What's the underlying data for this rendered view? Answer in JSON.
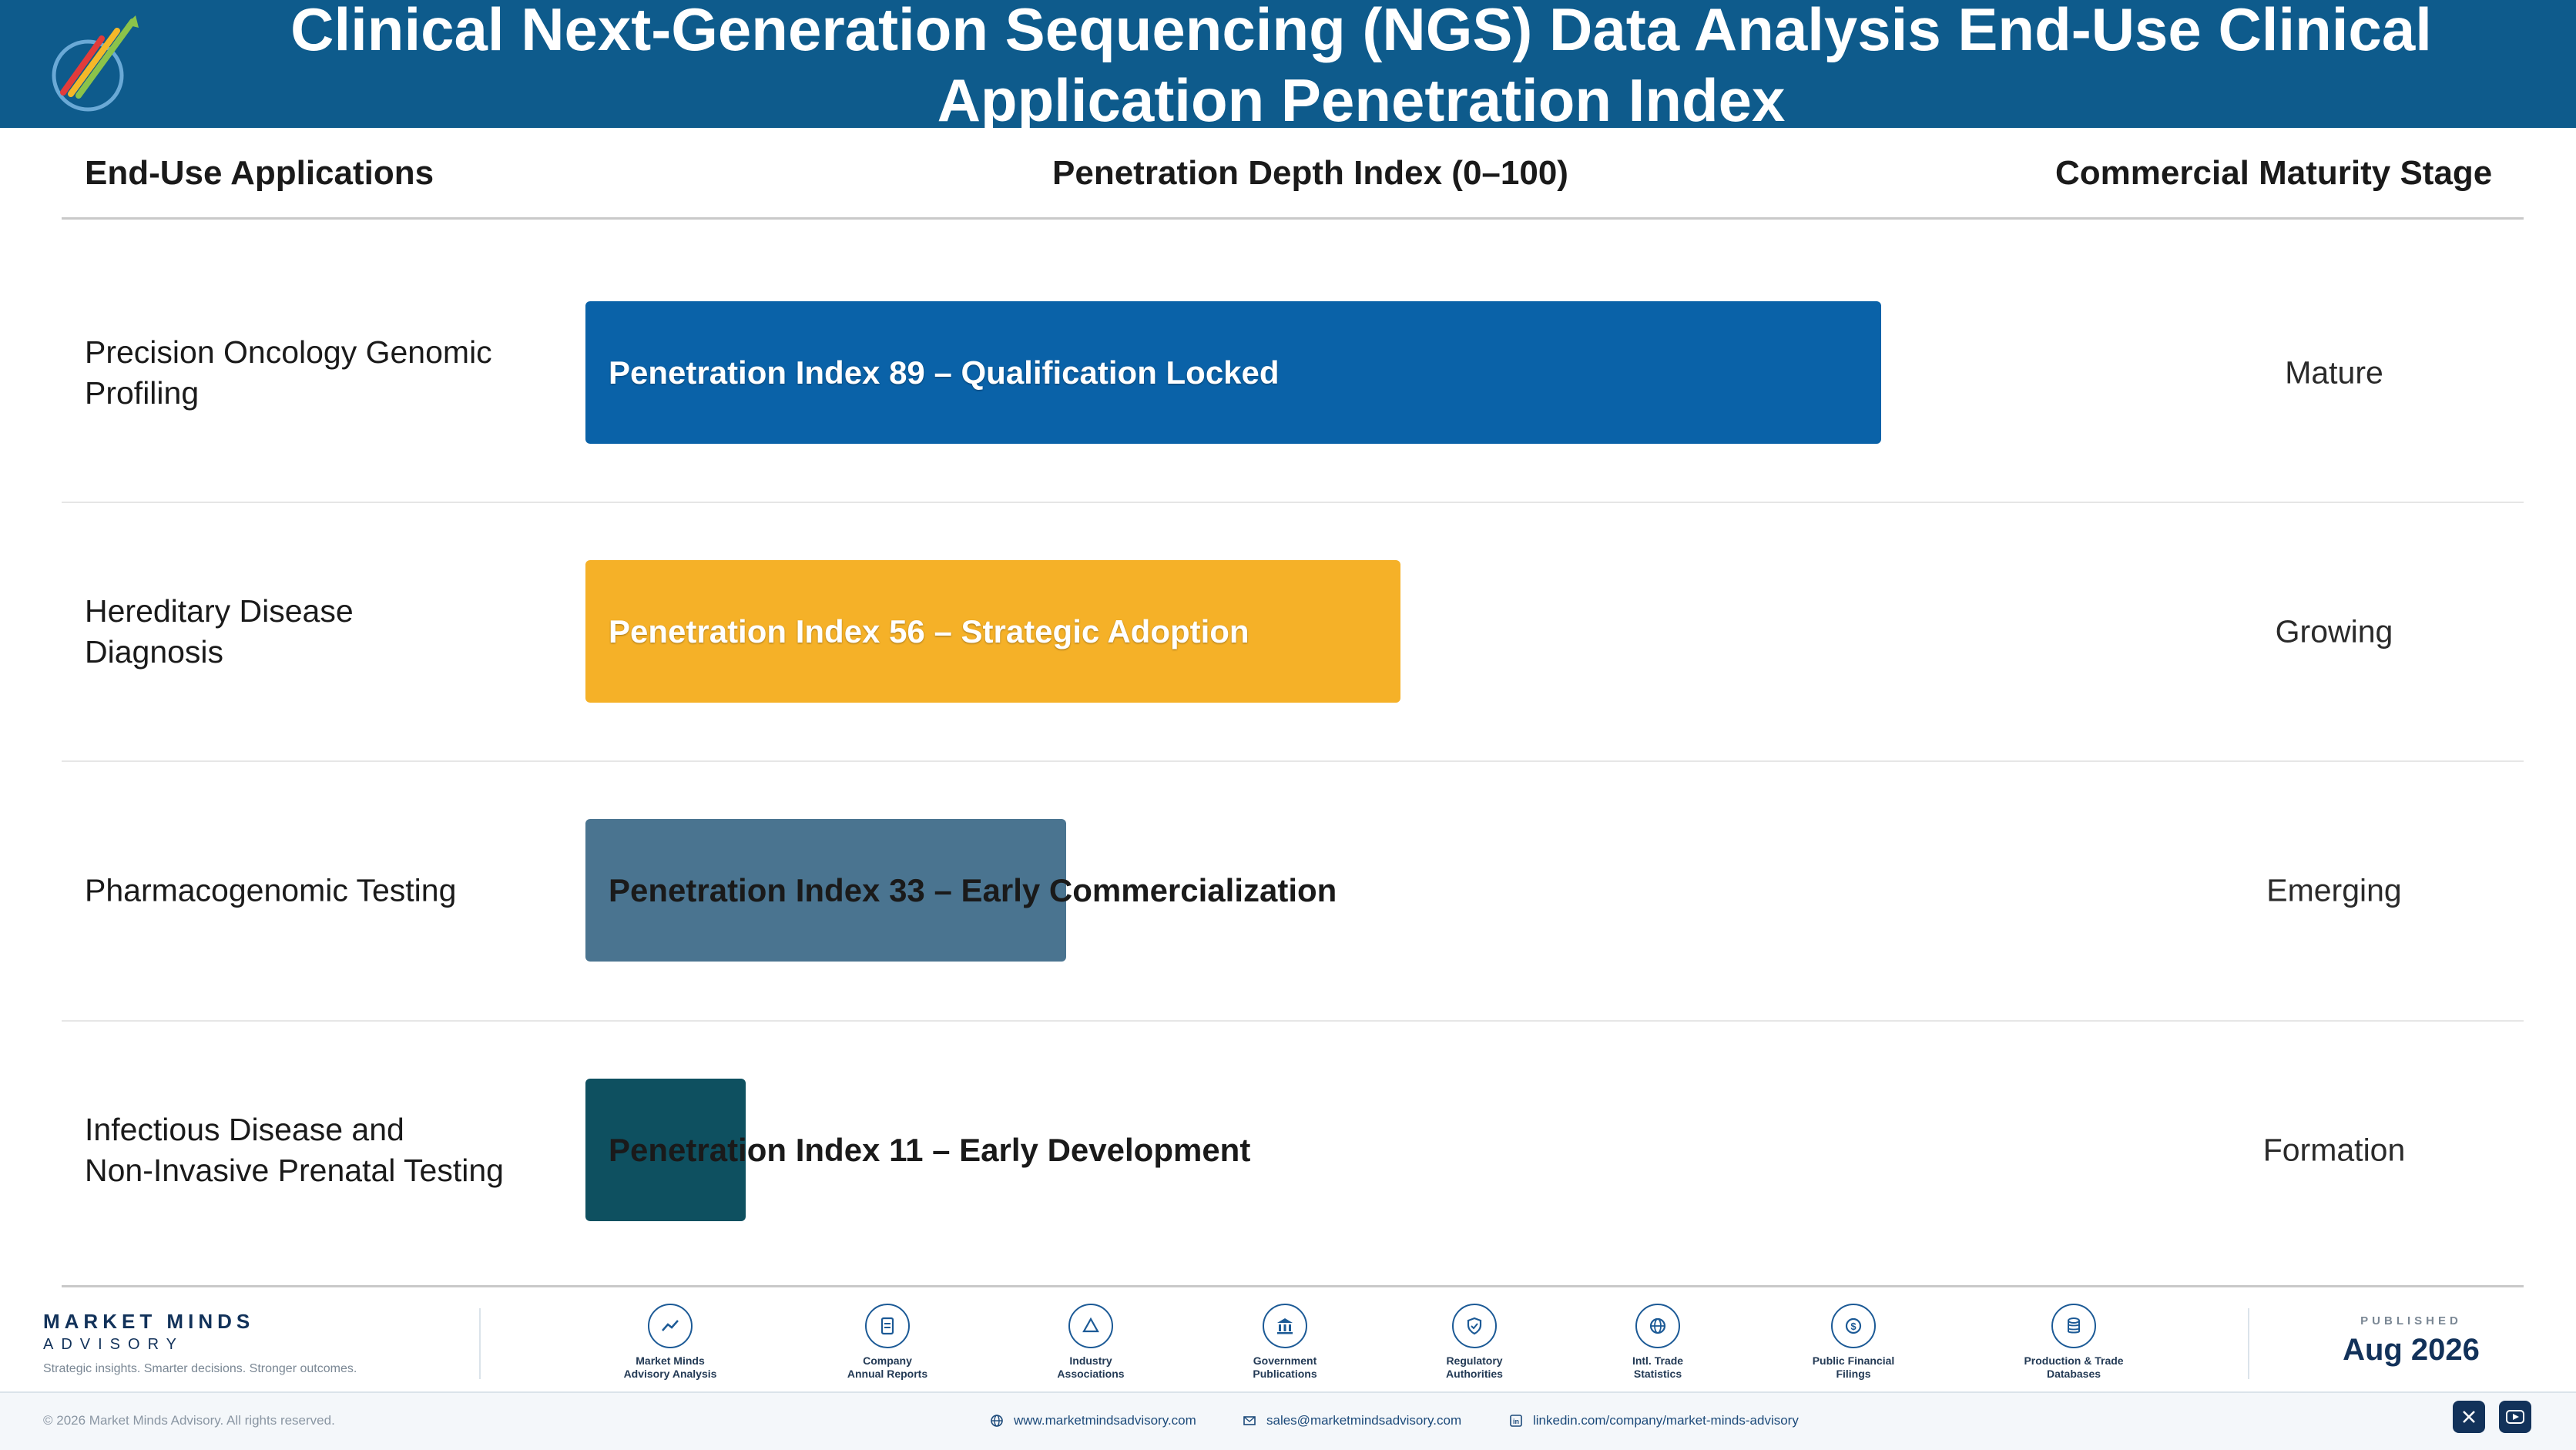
{
  "header": {
    "title_line1": "Clinical Next-Generation Sequencing (NGS) Data Analysis End-Use Clinical",
    "title_line2": "Application Penetration Index"
  },
  "columns": {
    "applications": "End-Use Applications",
    "penetration": "Penetration Depth Index (0–100)",
    "stage": "Commercial Maturity Stage"
  },
  "chart_data": {
    "type": "bar",
    "orientation": "horizontal",
    "xlim": [
      0,
      100
    ],
    "categories": [
      "Precision Oncology Genomic Profiling",
      "Hereditary Disease Diagnosis",
      "Pharmacogenomic Testing",
      "Infectious Disease and Non-Invasive Prenatal Testing"
    ],
    "values": [
      89,
      56,
      33,
      11
    ],
    "bar_labels": [
      "Penetration Index 89 – Qualification Locked",
      "Penetration Index 56 – Strategic Adoption",
      "Penetration Index 33 – Early Commercialization",
      "Penetration Index 11 – Early Development"
    ],
    "stages": [
      "Mature",
      "Growing",
      "Emerging",
      "Formation"
    ],
    "colors": [
      "#0a62a8",
      "#f5b128",
      "#4a7490",
      "#0e5060"
    ]
  },
  "rows": [
    {
      "app_line1": "Precision Oncology Genomic",
      "app_line2": "Profiling"
    },
    {
      "app_line1": "Hereditary Disease",
      "app_line2": "Diagnosis"
    },
    {
      "app_line1": "Pharmacogenomic Testing",
      "app_line2": ""
    },
    {
      "app_line1": "Infectious Disease and",
      "app_line2": "Non-Invasive Prenatal Testing"
    }
  ],
  "footer": {
    "brand": "MARKET MINDS",
    "brand_sub": "ADVISORY",
    "tagline": "Strategic insights. Smarter decisions. Stronger outcomes.",
    "sources": [
      {
        "line1": "Market Minds",
        "line2": "Advisory Analysis",
        "icon": "trend-chart-icon"
      },
      {
        "line1": "Company",
        "line2": "Annual Reports",
        "icon": "document-icon"
      },
      {
        "line1": "Industry",
        "line2": "Associations",
        "icon": "network-icon"
      },
      {
        "line1": "Government",
        "line2": "Publications",
        "icon": "government-building-icon"
      },
      {
        "line1": "Regulatory",
        "line2": "Authorities",
        "icon": "shield-icon"
      },
      {
        "line1": "Intl. Trade",
        "line2": "Statistics",
        "icon": "globe-icon"
      },
      {
        "line1": "Public Financial",
        "line2": "Filings",
        "icon": "dollar-coin-icon"
      },
      {
        "line1": "Production & Trade",
        "line2": "Databases",
        "icon": "database-icon"
      }
    ],
    "published_label": "PUBLISHED",
    "published_date": "Aug 2026",
    "copyright": "© 2026 Market Minds Advisory. All rights reserved.",
    "website": "www.marketmindsadvisory.com",
    "email": "sales@marketmindsadvisory.com",
    "linkedin": "linkedin.com/company/market-minds-advisory"
  }
}
